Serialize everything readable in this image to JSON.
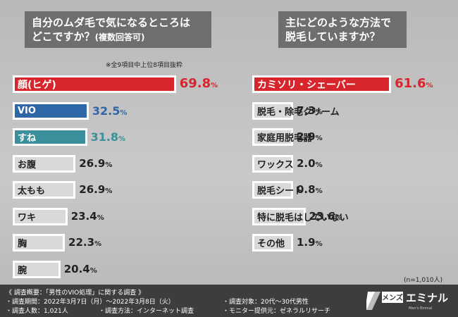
{
  "left": {
    "title_line1": "自分のムダ毛で気になるところは",
    "title_line2": "どこですか？",
    "title_suffix": "(複数回答可)",
    "note": "※全9項目中上位8項目抜粋"
  },
  "right": {
    "title_line1": "主にどのような方法で",
    "title_line2": "脱毛していますか？",
    "note": "(n=1,010人)"
  },
  "chart_data": [
    {
      "type": "bar",
      "orientation": "horizontal",
      "categories": [
        "顔(ヒゲ)",
        "VIO",
        "すね",
        "お腹",
        "太もも",
        "ワキ",
        "胸",
        "腕"
      ],
      "values": [
        69.8,
        32.5,
        31.8,
        26.9,
        26.9,
        23.4,
        22.3,
        20.4
      ],
      "value_labels": [
        "69.8",
        "32.5",
        "31.8",
        "26.9",
        "26.9",
        "23.4",
        "22.3",
        "20.4"
      ],
      "unit": "%",
      "colors": [
        "#d6262c",
        "#2d67a8",
        "#3a8f9a",
        "#d9d9d9",
        "#d9d9d9",
        "#d9d9d9",
        "#d9d9d9",
        "#d9d9d9"
      ]
    },
    {
      "type": "bar",
      "orientation": "horizontal",
      "categories": [
        "カミソリ・シェーバー",
        "脱毛・除毛クリーム",
        "家庭用脱毛器",
        "ワックス",
        "脱毛シート",
        "特に脱毛はしていない",
        "その他"
      ],
      "values": [
        61.6,
        7.3,
        2.9,
        2.0,
        0.8,
        23.6,
        1.9
      ],
      "value_labels": [
        "61.6",
        "7.3",
        "2.9",
        "2.0",
        "0.8",
        "23.6",
        "1.9"
      ],
      "unit": "%",
      "colors": [
        "#d6262c",
        "#d9d9d9",
        "#d9d9d9",
        "#d9d9d9",
        "#d9d9d9",
        "#d9d9d9",
        "#d9d9d9"
      ]
    }
  ],
  "footer": {
    "l1": "《 調査概要：「男性のVIO処理」に関する調査 》",
    "l2": "・調査期間：2022年3月7日（月）～2022年3月8日（火）",
    "l3": "・調査人数：1,021人",
    "l3b": "・調査方法：インターネット調査",
    "r1": "・調査対象：20代～30代男性",
    "r2": "・モニター提供元：ゼネラルリサーチ"
  },
  "logo": {
    "mens": "メンズ",
    "name": "エミナル",
    "tagline": "Men's Eminal"
  }
}
